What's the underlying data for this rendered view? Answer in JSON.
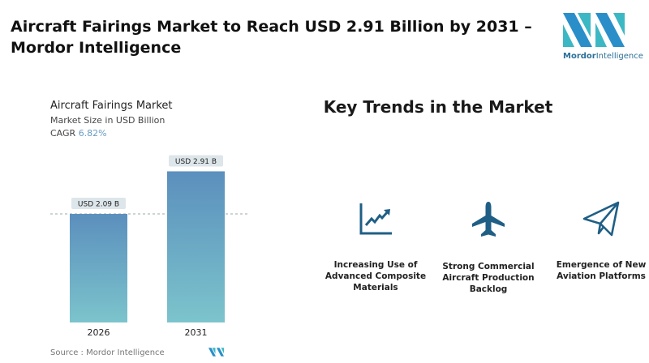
{
  "header": {
    "title": "Aircraft Fairings Market to Reach USD 2.91 Billion by 2031 – Mordor Intelligence",
    "logo_text_bold": "Mordor",
    "logo_text": "Intelligence"
  },
  "chart_data": {
    "type": "bar",
    "title": "Aircraft Fairings Market",
    "subtitle": "Market Size in USD Billion",
    "cagr_label": "CAGR",
    "cagr_value": "6.82%",
    "categories": [
      "2026",
      "2031"
    ],
    "values": [
      2.09,
      2.91
    ],
    "data_labels": [
      "USD 2.09 B",
      "USD 2.91 B"
    ],
    "ylim": [
      0,
      3.2
    ],
    "grid": false,
    "reference_line": "dashed at 2026 value",
    "colors": {
      "bar_top": "#5b8fbd",
      "bar_bottom": "#7cc4cc",
      "label_bg": "#dde6ea"
    }
  },
  "source": "Source :  Mordor Intelligence",
  "trends": {
    "heading": "Key Trends in the Market",
    "items": [
      {
        "icon": "line-chart-icon",
        "label": "Increasing Use of Advanced Composite Materials"
      },
      {
        "icon": "airplane-icon",
        "label": "Strong Commercial Aircraft Production Backlog"
      },
      {
        "icon": "paper-plane-icon",
        "label": "Emergence of New Aviation Platforms"
      }
    ],
    "icon_color": "#1f5f85"
  }
}
